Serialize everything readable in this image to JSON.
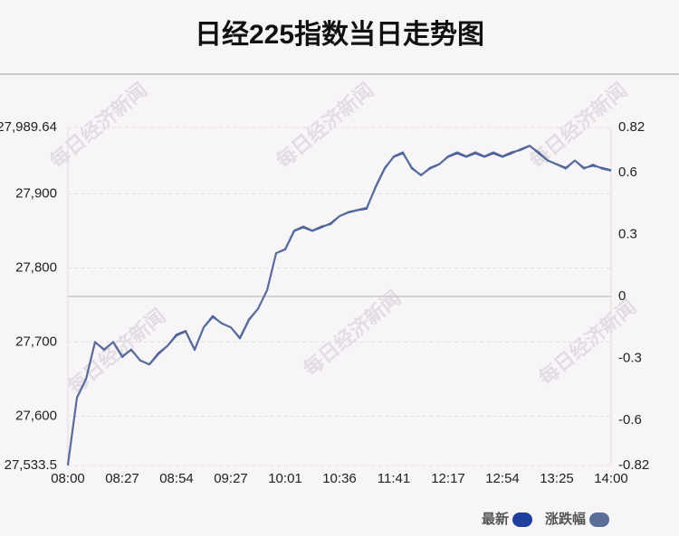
{
  "chart_data": {
    "type": "line",
    "title": "日经225指数当日走势图",
    "watermark": "每日经济新闻",
    "categories": [
      "08:00",
      null,
      null,
      null,
      null,
      null,
      "08:27",
      null,
      null,
      null,
      null,
      null,
      "08:54",
      null,
      null,
      null,
      null,
      null,
      "09:27",
      null,
      null,
      null,
      null,
      null,
      "10:01",
      null,
      null,
      null,
      null,
      null,
      "10:36",
      null,
      null,
      null,
      null,
      null,
      "11:41",
      null,
      null,
      null,
      null,
      null,
      "12:17",
      null,
      null,
      null,
      null,
      null,
      "12:54",
      null,
      null,
      null,
      null,
      null,
      "13:25",
      null,
      null,
      null,
      null,
      null,
      "14:00"
    ],
    "series": [
      {
        "name": "最新",
        "color": "#1e3f9e",
        "axis": "y",
        "values": [
          27535,
          27625,
          27650,
          27700,
          27690,
          27700,
          27680,
          27690,
          27675,
          27670,
          27685,
          27695,
          27710,
          27715,
          27690,
          27720,
          27735,
          27725,
          27720,
          27705,
          27730,
          27745,
          27770,
          27820,
          27825,
          27850,
          27855,
          27850,
          27855,
          27860,
          27870,
          27875,
          27878,
          27880,
          27910,
          27935,
          27950,
          27955,
          27935,
          27925,
          27935,
          27940,
          27950,
          27955,
          27950,
          27955,
          27950,
          27955,
          27950,
          27955,
          27960,
          27965,
          27955,
          27945,
          27940,
          27935,
          27945,
          27935,
          27938,
          27935,
          27932
        ]
      },
      {
        "name": "涨跌幅",
        "color": "#5b6e98",
        "axis": "y2",
        "values": [
          -0.82,
          -0.49,
          -0.4,
          -0.22,
          -0.26,
          -0.22,
          -0.29,
          -0.26,
          -0.31,
          -0.33,
          -0.28,
          -0.24,
          -0.19,
          -0.17,
          -0.26,
          -0.15,
          -0.1,
          -0.13,
          -0.15,
          -0.2,
          -0.11,
          -0.06,
          0.03,
          0.21,
          0.23,
          0.32,
          0.34,
          0.32,
          0.34,
          0.35,
          0.39,
          0.41,
          0.42,
          0.43,
          0.53,
          0.62,
          0.68,
          0.7,
          0.62,
          0.59,
          0.62,
          0.64,
          0.68,
          0.7,
          0.68,
          0.7,
          0.68,
          0.7,
          0.68,
          0.7,
          0.71,
          0.73,
          0.7,
          0.66,
          0.64,
          0.62,
          0.66,
          0.62,
          0.64,
          0.62,
          0.61
        ]
      }
    ],
    "ylim": [
      27533.5,
      27989.64
    ],
    "yticks": [
      {
        "value": 27533.5,
        "label": "27,533.5"
      },
      {
        "value": 27600,
        "label": "27,600"
      },
      {
        "value": 27700,
        "label": "27,700"
      },
      {
        "value": 27800,
        "label": "27,800"
      },
      {
        "value": 27900,
        "label": "27,900"
      },
      {
        "value": 27989.64,
        "label": "27,989.64"
      }
    ],
    "y2lim": [
      -0.82,
      0.82
    ],
    "y2ticks": [
      -0.82,
      -0.6,
      -0.3,
      0,
      0.3,
      0.6,
      0.82
    ],
    "grid": true,
    "legend": "bottom-right"
  }
}
